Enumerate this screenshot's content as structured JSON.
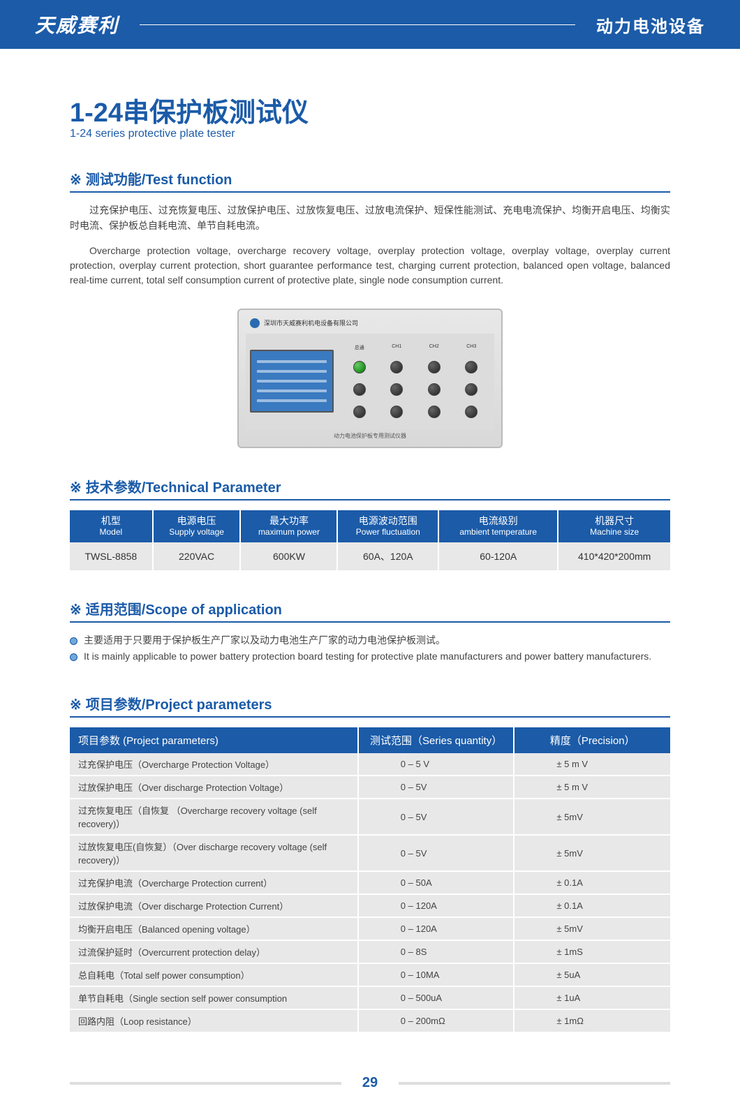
{
  "header": {
    "brand": "天威赛利",
    "category": "动力电池设备"
  },
  "title": {
    "cn": "1-24串保护板测试仪",
    "en": "1-24 series protective plate tester"
  },
  "sections": {
    "test_function": {
      "heading": "测试功能/Test function",
      "p_cn": "过充保护电压、过充恢复电压、过放保护电压、过放恢复电压、过放电流保护、短保性能测试、充电电流保护、均衡开启电压、均衡实时电流、保护板总自耗电流、单节自耗电流。",
      "p_en": "Overcharge protection voltage, overcharge recovery voltage, overplay protection voltage, overplay voltage, overplay current protection, overplay current protection, short guarantee performance test, charging current protection, balanced open voltage, balanced real-time current, total self consumption current of protective plate, single node consumption current."
    },
    "technical": {
      "heading": "技术参数/Technical Parameter",
      "columns": [
        {
          "cn": "机型",
          "en": "Model"
        },
        {
          "cn": "电源电压",
          "en": "Supply voltage"
        },
        {
          "cn": "最大功率",
          "en": "maximum power"
        },
        {
          "cn": "电源波动范围",
          "en": "Power fluctuation"
        },
        {
          "cn": "电流级别",
          "en": "ambient temperature"
        },
        {
          "cn": "机器尺寸",
          "en": "Machine size"
        }
      ],
      "row": [
        "TWSL-8858",
        "220VAC",
        "600KW",
        "60A、120A",
        "60-120A",
        "410*420*200mm"
      ]
    },
    "scope": {
      "heading": "适用范围/Scope of application",
      "items": [
        "主要适用于只要用于保护板生产厂家以及动力电池生产厂家的动力电池保护板测试。",
        "It is mainly applicable to power battery protection board testing for protective plate manufacturers and power battery manufacturers."
      ]
    },
    "project": {
      "heading": "项目参数/Project parameters",
      "columns": [
        "项目参数 (Project parameters)",
        "测试范围（Series quantity）",
        "精度（Precision）"
      ],
      "rows": [
        {
          "name": "过充保护电压（Overcharge Protection Voltage）",
          "range": "0 – 5 V",
          "precision": "± 5 m V"
        },
        {
          "name": "过放保护电压（Over discharge Protection Voltage）",
          "range": "0 – 5V",
          "precision": "± 5 m V"
        },
        {
          "name": "过充恢复电压（自恢复 （Overcharge recovery voltage (self recovery)）",
          "range": "0 – 5V",
          "precision": "± 5mV"
        },
        {
          "name": "过放恢复电压(自恢复）（Over discharge recovery voltage (self recovery)）",
          "range": "0 – 5V",
          "precision": "± 5mV"
        },
        {
          "name": "过充保护电流（Overcharge Protection current）",
          "range": "0 – 50A",
          "precision": "± 0.1A"
        },
        {
          "name": "过放保护电流（Over discharge Protection Current）",
          "range": "0 – 120A",
          "precision": "± 0.1A"
        },
        {
          "name": "均衡开启电压（Balanced opening voltage）",
          "range": "0 – 120A",
          "precision": "± 5mV"
        },
        {
          "name": "过流保护延时（Overcurrent protection delay）",
          "range": "0 – 8S",
          "precision": "± 1mS"
        },
        {
          "name": "总自耗电（Total self power consumption）",
          "range": "0 – 10MA",
          "precision": "± 5uA"
        },
        {
          "name": "单节自耗电（Single section self power consumption",
          "range": "0 – 500uA",
          "precision": "± 1uA"
        },
        {
          "name": "回路内阻（Loop resistance）",
          "range": "0 – 200mΩ",
          "precision": "± 1mΩ"
        }
      ]
    }
  },
  "device": {
    "company": "深圳市天威赛利机电设备有限公司",
    "knob_labels": [
      "总通",
      "CH1",
      "CH2",
      "CH3"
    ],
    "bottom_label": "动力电池保护板专用测试仪器"
  },
  "page_number": "29",
  "colors": {
    "primary": "#1b5ba8",
    "row_bg": "#e8e8e8",
    "text": "#444444"
  }
}
